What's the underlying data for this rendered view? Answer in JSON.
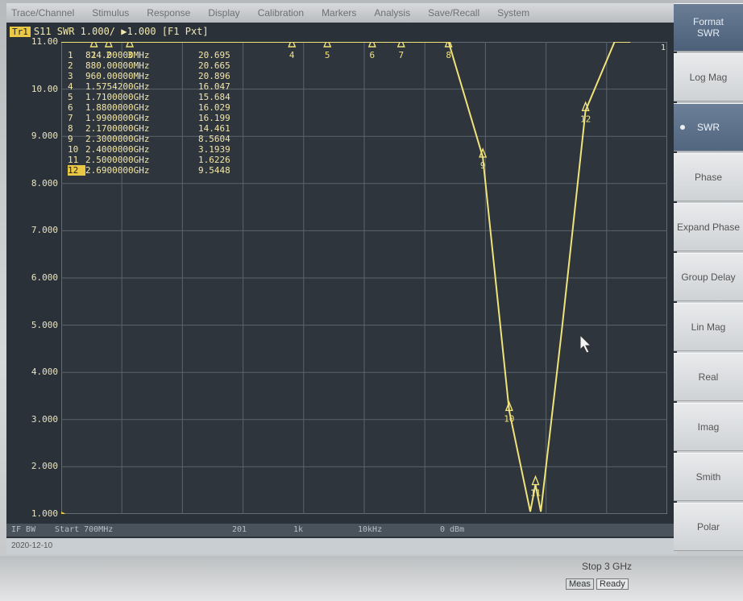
{
  "menu": [
    "Trace/Channel",
    "Stimulus",
    "Response",
    "Display",
    "Calibration",
    "Markers",
    "Analysis",
    "Save/Recall",
    "System"
  ],
  "trace": {
    "badge": "Tr1",
    "label": "S11 SWR 1.000/ ▶1.000 [F1 Pxt]"
  },
  "y_axis_labels": [
    "11.00",
    "10.00",
    "9.000",
    "8.000",
    "7.000",
    "6.000",
    "5.000",
    "4.000",
    "3.000",
    "2.000",
    "1.000"
  ],
  "markers": [
    {
      "num": "1",
      "freq": "824.00000MHz",
      "value": "20.695"
    },
    {
      "num": "2",
      "freq": "880.00000MHz",
      "value": "20.665"
    },
    {
      "num": "3",
      "freq": "960.00000MHz",
      "value": "20.896"
    },
    {
      "num": "4",
      "freq": "1.5754200GHz",
      "value": "16.047"
    },
    {
      "num": "5",
      "freq": "1.7100000GHz",
      "value": "15.684"
    },
    {
      "num": "6",
      "freq": "1.8800000GHz",
      "value": "16.029"
    },
    {
      "num": "7",
      "freq": "1.9900000GHz",
      "value": "16.199"
    },
    {
      "num": "8",
      "freq": "2.1700000GHz",
      "value": "14.461"
    },
    {
      "num": "9",
      "freq": "2.3000000GHz",
      "value": "8.5604"
    },
    {
      "num": "10",
      "freq": "2.4000000GHz",
      "value": "3.1939"
    },
    {
      "num": "11",
      "freq": "2.5000000GHz",
      "value": "1.6226"
    },
    {
      "num": "12",
      "freq": "2.6900000GHz",
      "value": "9.5448"
    }
  ],
  "trace_color": "#f1e27a",
  "status1": {
    "left": "IF BW",
    "start": "Start 700MHz",
    "points": "201",
    "ifbw": "1k",
    "power": "10kHz",
    "dbm": "0 dBm"
  },
  "status2": {
    "left": "2020-12-10",
    "stop": "Stop 3 GHz",
    "meas": "Meas",
    "ready": "Ready"
  },
  "softkeys": [
    {
      "label": "Format",
      "sub": "SWR",
      "type": "header"
    },
    {
      "label": "Log Mag"
    },
    {
      "label": "SWR",
      "selected": true
    },
    {
      "label": "Phase"
    },
    {
      "label": "Expand Phase"
    },
    {
      "label": "Group Delay"
    },
    {
      "label": "Lin Mag"
    },
    {
      "label": "Real"
    },
    {
      "label": "Imag"
    },
    {
      "label": "Smith"
    },
    {
      "label": "Polar"
    }
  ],
  "chart_data": {
    "type": "line",
    "xlabel": "",
    "ylabel": "",
    "x_range_ghz": [
      0.7,
      3.0
    ],
    "ylim": [
      1,
      11
    ],
    "series": [
      {
        "x": [
          0.7,
          2.14,
          2.17,
          2.3,
          2.4,
          2.48,
          2.5,
          2.52,
          2.6,
          2.69,
          2.8,
          2.86
        ],
        "values": [
          11,
          11,
          11,
          8.5604,
          3.1939,
          1.05,
          1.6226,
          1.05,
          4.9,
          9.5448,
          11,
          11
        ]
      }
    ],
    "marker_positions_ghz": [
      0.824,
      0.88,
      0.96,
      1.57542,
      1.71,
      1.88,
      1.99,
      2.17,
      2.3,
      2.4,
      2.5,
      2.69
    ],
    "grid": true
  }
}
